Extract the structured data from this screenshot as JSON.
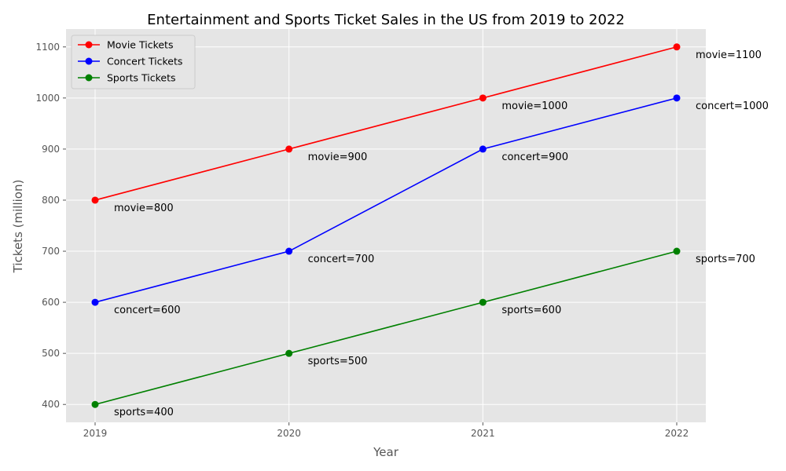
{
  "chart_data": {
    "type": "line",
    "title": "Entertainment and Sports Ticket Sales in the US from 2019 to 2022",
    "xlabel": "Year",
    "ylabel": "Tickets (million)",
    "x": [
      "2019",
      "2020",
      "2021",
      "2022"
    ],
    "ylim": [
      365,
      1135
    ],
    "yticks": [
      400,
      500,
      600,
      700,
      800,
      900,
      1000,
      1100
    ],
    "grid": true,
    "legend_position": "top-left",
    "series": [
      {
        "name": "Movie Tickets",
        "color": "#ff0000",
        "values": [
          800,
          900,
          1000,
          1100
        ],
        "labels": [
          "movie=800",
          "movie=900",
          "movie=1000",
          "movie=1100"
        ]
      },
      {
        "name": "Concert Tickets",
        "color": "#0000ff",
        "values": [
          600,
          700,
          900,
          1000
        ],
        "labels": [
          "concert=600",
          "concert=700",
          "concert=900",
          "concert=1000"
        ]
      },
      {
        "name": "Sports Tickets",
        "color": "#008000",
        "values": [
          400,
          500,
          600,
          700
        ],
        "labels": [
          "sports=400",
          "sports=500",
          "sports=600",
          "sports=700"
        ]
      }
    ]
  }
}
